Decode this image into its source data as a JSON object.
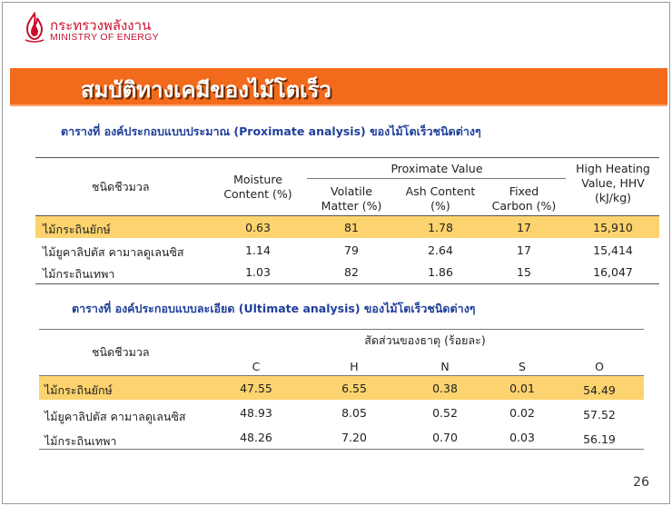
{
  "logo": {
    "thai_name": "กระทรวงพลังงาน",
    "english_name": "MINISTRY OF ENERGY",
    "icon": "flame-logo-icon"
  },
  "title": "สมบัติทางเคมีของไม้โตเร็ว",
  "colors": {
    "band": "#f26a1b",
    "highlight": "#fcd36e",
    "caption": "#1f3f9a",
    "logo": "#c8102e"
  },
  "table1": {
    "caption": "ตารางที่ องค์ประกอบแบบประมาณ (Proximate analysis) ของไม้โตเร็วชนิดต่างๆ",
    "headers": {
      "biomass": "ชนิดชีวมวล",
      "moisture": [
        "Moisture",
        "Content (%)"
      ],
      "proximate": "Proximate Value",
      "volatile": [
        "Volatile",
        "Matter (%)"
      ],
      "ash": [
        "Ash Content",
        "(%)"
      ],
      "fixed": [
        "Fixed",
        "Carbon (%)"
      ],
      "hhv": [
        "High Heating",
        "Value, HHV",
        "(kJ/kg)"
      ]
    },
    "rows": [
      {
        "name": "ไม้กระถินยักษ์",
        "moisture": "0.63",
        "volatile": "81",
        "ash": "1.78",
        "fixed": "17",
        "hhv": "15,910"
      },
      {
        "name": "ไม้ยูคาลิปตัส คามาลดูเลนซิส",
        "moisture": "1.14",
        "volatile": "79",
        "ash": "2.64",
        "fixed": "17",
        "hhv": "15,414"
      },
      {
        "name": "ไม้กระถินเทพา",
        "moisture": "1.03",
        "volatile": "82",
        "ash": "1.86",
        "fixed": "15",
        "hhv": "16,047"
      }
    ]
  },
  "table2": {
    "caption": "ตารางที่    องค์ประกอบแบบละเอียด (Ultimate analysis) ของไม้โตเร็วชนิดต่างๆ",
    "headers": {
      "biomass": "ชนิดชีวมวล",
      "ratio": "สัดส่วนของธาตุ (ร้อยละ)",
      "elements": [
        "C",
        "H",
        "N",
        "S",
        "O"
      ]
    },
    "rows": [
      {
        "name": "ไม้กระถินยักษ์",
        "values": [
          "47.55",
          "6.55",
          "0.38",
          "0.01",
          "54.49"
        ]
      },
      {
        "name": "ไม้ยูคาลิปตัส คามาลดูเลนซิส",
        "values": [
          "48.93",
          "8.05",
          "0.52",
          "0.02",
          "57.52"
        ]
      },
      {
        "name": "ไม้กระถินเทพา",
        "values": [
          "48.26",
          "7.20",
          "0.70",
          "0.03",
          "56.19"
        ]
      }
    ]
  },
  "page_number": "26"
}
